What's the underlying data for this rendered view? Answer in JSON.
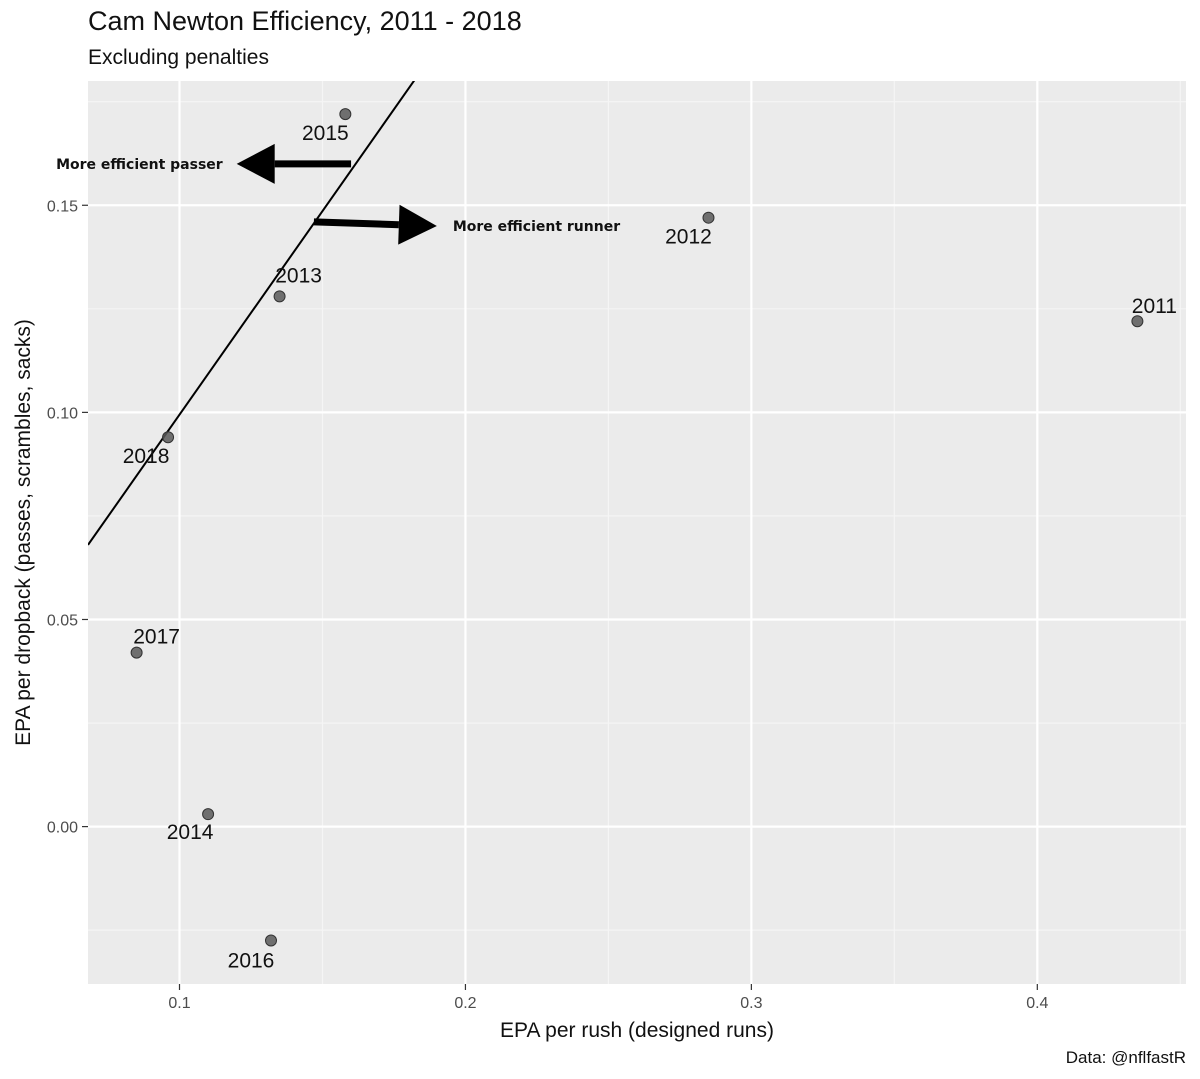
{
  "chart_data": {
    "type": "scatter",
    "title": "Cam Newton Efficiency, 2011 - 2018",
    "subtitle": "Excluding penalties",
    "xlabel": "EPA per rush (designed runs)",
    "ylabel": "EPA per dropback (passes, scrambles, sacks)",
    "caption": "Data: @nflfastR",
    "xlim": [
      0.068,
      0.452
    ],
    "ylim": [
      -0.038,
      0.18
    ],
    "x_ticks": [
      0.1,
      0.2,
      0.3,
      0.4
    ],
    "x_tick_labels": [
      "0.1",
      "0.2",
      "0.3",
      "0.4"
    ],
    "y_ticks": [
      0.0,
      0.05,
      0.1,
      0.15
    ],
    "y_tick_labels": [
      "0.00",
      "0.05",
      "0.10",
      "0.15"
    ],
    "grid": true,
    "legend": "none",
    "points": [
      {
        "label": "2011",
        "x": 0.435,
        "y": 0.122
      },
      {
        "label": "2012",
        "x": 0.285,
        "y": 0.147
      },
      {
        "label": "2013",
        "x": 0.135,
        "y": 0.128
      },
      {
        "label": "2014",
        "x": 0.11,
        "y": 0.003
      },
      {
        "label": "2015",
        "x": 0.158,
        "y": 0.172
      },
      {
        "label": "2016",
        "x": 0.132,
        "y": -0.0275
      },
      {
        "label": "2017",
        "x": 0.085,
        "y": 0.042
      },
      {
        "label": "2018",
        "x": 0.096,
        "y": 0.094
      }
    ],
    "reference_line": {
      "x1": 0.068,
      "y1": 0.068,
      "x2": 0.184,
      "y2": 0.182
    },
    "annotations": [
      {
        "text": "More efficient passer",
        "direction": "left",
        "arrow_from": [
          0.16,
          0.16
        ],
        "arrow_to": [
          0.12,
          0.16
        ]
      },
      {
        "text": "More efficient runner",
        "direction": "right",
        "arrow_from": [
          0.147,
          0.146
        ],
        "arrow_to": [
          0.19,
          0.145
        ]
      }
    ],
    "colors": {
      "panel": "#ebebeb",
      "grid_major": "#ffffff",
      "grid_minor": "#f5f5f5",
      "point": "#595959",
      "line": "#000000"
    }
  }
}
